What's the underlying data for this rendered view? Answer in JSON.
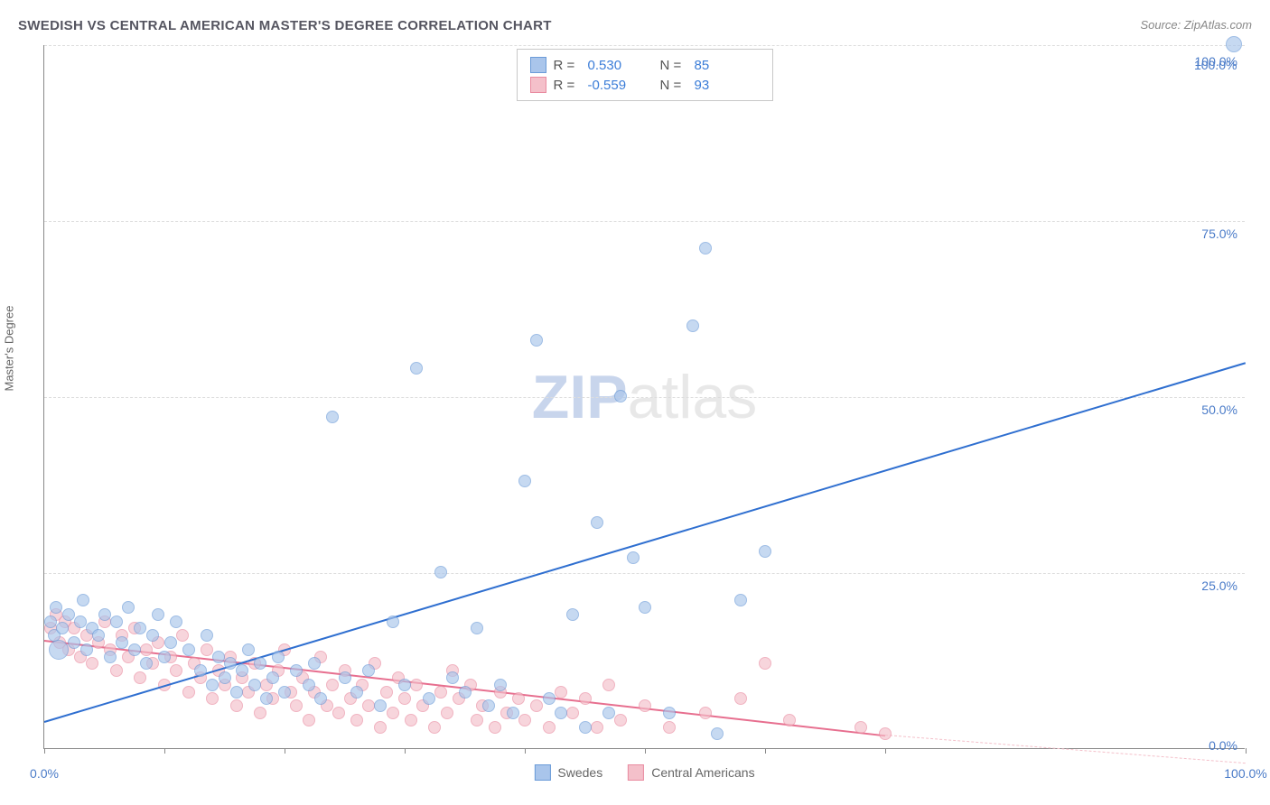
{
  "title": "SWEDISH VS CENTRAL AMERICAN MASTER'S DEGREE CORRELATION CHART",
  "source": "Source: ZipAtlas.com",
  "ylabel": "Master's Degree",
  "watermark_a": "ZIP",
  "watermark_b": "atlas",
  "chart": {
    "type": "scatter",
    "xlim": [
      0,
      100
    ],
    "ylim": [
      0,
      100
    ],
    "ytick_step": 25,
    "yticks": [
      0,
      25,
      50,
      75,
      100
    ],
    "ytick_labels": [
      "0.0%",
      "25.0%",
      "50.0%",
      "75.0%",
      "100.0%"
    ],
    "xticks": [
      0,
      10,
      20,
      30,
      40,
      50,
      60,
      70,
      100
    ],
    "xtick_labels_shown": {
      "0": "0.0%",
      "100": "100.0%"
    },
    "grid_color": "#dddddd",
    "axis_color": "#888888",
    "background_color": "#ffffff"
  },
  "series": {
    "swedes": {
      "label": "Swedes",
      "fill_color": "#a9c5eb",
      "stroke_color": "#6b9bd8",
      "fill_opacity": 0.65,
      "trend_color": "#2f6fd0",
      "trend_width": 2,
      "R": "0.530",
      "N": "85",
      "trend": {
        "x1": 0,
        "y1": 4,
        "x2": 100,
        "y2": 55
      },
      "marker_radius": 7,
      "points": [
        {
          "x": 0.5,
          "y": 18
        },
        {
          "x": 0.8,
          "y": 16
        },
        {
          "x": 1,
          "y": 20
        },
        {
          "x": 1.2,
          "y": 14,
          "r": 11
        },
        {
          "x": 1.5,
          "y": 17
        },
        {
          "x": 2,
          "y": 19
        },
        {
          "x": 2.5,
          "y": 15
        },
        {
          "x": 3,
          "y": 18
        },
        {
          "x": 3.2,
          "y": 21
        },
        {
          "x": 3.5,
          "y": 14
        },
        {
          "x": 4,
          "y": 17
        },
        {
          "x": 4.5,
          "y": 16
        },
        {
          "x": 5,
          "y": 19
        },
        {
          "x": 5.5,
          "y": 13
        },
        {
          "x": 6,
          "y": 18
        },
        {
          "x": 6.5,
          "y": 15
        },
        {
          "x": 7,
          "y": 20
        },
        {
          "x": 7.5,
          "y": 14
        },
        {
          "x": 8,
          "y": 17
        },
        {
          "x": 8.5,
          "y": 12
        },
        {
          "x": 9,
          "y": 16
        },
        {
          "x": 9.5,
          "y": 19
        },
        {
          "x": 10,
          "y": 13
        },
        {
          "x": 10.5,
          "y": 15
        },
        {
          "x": 11,
          "y": 18
        },
        {
          "x": 12,
          "y": 14
        },
        {
          "x": 13,
          "y": 11
        },
        {
          "x": 13.5,
          "y": 16
        },
        {
          "x": 14,
          "y": 9
        },
        {
          "x": 14.5,
          "y": 13
        },
        {
          "x": 15,
          "y": 10
        },
        {
          "x": 15.5,
          "y": 12
        },
        {
          "x": 16,
          "y": 8
        },
        {
          "x": 16.5,
          "y": 11
        },
        {
          "x": 17,
          "y": 14
        },
        {
          "x": 17.5,
          "y": 9
        },
        {
          "x": 18,
          "y": 12
        },
        {
          "x": 18.5,
          "y": 7
        },
        {
          "x": 19,
          "y": 10
        },
        {
          "x": 19.5,
          "y": 13
        },
        {
          "x": 20,
          "y": 8
        },
        {
          "x": 21,
          "y": 11
        },
        {
          "x": 22,
          "y": 9
        },
        {
          "x": 22.5,
          "y": 12
        },
        {
          "x": 23,
          "y": 7
        },
        {
          "x": 24,
          "y": 47
        },
        {
          "x": 25,
          "y": 10
        },
        {
          "x": 26,
          "y": 8
        },
        {
          "x": 27,
          "y": 11
        },
        {
          "x": 28,
          "y": 6
        },
        {
          "x": 29,
          "y": 18
        },
        {
          "x": 30,
          "y": 9
        },
        {
          "x": 31,
          "y": 54
        },
        {
          "x": 32,
          "y": 7
        },
        {
          "x": 33,
          "y": 25
        },
        {
          "x": 34,
          "y": 10
        },
        {
          "x": 35,
          "y": 8
        },
        {
          "x": 36,
          "y": 17
        },
        {
          "x": 37,
          "y": 6
        },
        {
          "x": 38,
          "y": 9
        },
        {
          "x": 39,
          "y": 5
        },
        {
          "x": 40,
          "y": 38
        },
        {
          "x": 41,
          "y": 58
        },
        {
          "x": 42,
          "y": 7
        },
        {
          "x": 43,
          "y": 5
        },
        {
          "x": 44,
          "y": 19
        },
        {
          "x": 45,
          "y": 3
        },
        {
          "x": 46,
          "y": 32
        },
        {
          "x": 47,
          "y": 5
        },
        {
          "x": 48,
          "y": 50
        },
        {
          "x": 49,
          "y": 27
        },
        {
          "x": 50,
          "y": 20
        },
        {
          "x": 52,
          "y": 5
        },
        {
          "x": 54,
          "y": 60
        },
        {
          "x": 55,
          "y": 71
        },
        {
          "x": 56,
          "y": 2
        },
        {
          "x": 58,
          "y": 21
        },
        {
          "x": 60,
          "y": 28
        },
        {
          "x": 99,
          "y": 100,
          "r": 9
        }
      ],
      "special_label": {
        "x": 99,
        "y": 100,
        "text": "100.0%"
      }
    },
    "central_americans": {
      "label": "Central Americans",
      "fill_color": "#f4c0ca",
      "stroke_color": "#e98ba0",
      "fill_opacity": 0.65,
      "trend_color": "#e76f8f",
      "trend_width": 2,
      "R": "-0.559",
      "N": "93",
      "trend": {
        "x1": 0,
        "y1": 15.5,
        "x2": 70,
        "y2": 2
      },
      "trend_dashed_ext": {
        "x1": 70,
        "y1": 2,
        "x2": 100,
        "y2": -2
      },
      "marker_radius": 7,
      "points": [
        {
          "x": 0.5,
          "y": 17
        },
        {
          "x": 1,
          "y": 19
        },
        {
          "x": 1.3,
          "y": 15
        },
        {
          "x": 1.7,
          "y": 18
        },
        {
          "x": 2,
          "y": 14
        },
        {
          "x": 2.5,
          "y": 17
        },
        {
          "x": 3,
          "y": 13
        },
        {
          "x": 3.5,
          "y": 16
        },
        {
          "x": 4,
          "y": 12
        },
        {
          "x": 4.5,
          "y": 15
        },
        {
          "x": 5,
          "y": 18
        },
        {
          "x": 5.5,
          "y": 14
        },
        {
          "x": 6,
          "y": 11
        },
        {
          "x": 6.5,
          "y": 16
        },
        {
          "x": 7,
          "y": 13
        },
        {
          "x": 7.5,
          "y": 17
        },
        {
          "x": 8,
          "y": 10
        },
        {
          "x": 8.5,
          "y": 14
        },
        {
          "x": 9,
          "y": 12
        },
        {
          "x": 9.5,
          "y": 15
        },
        {
          "x": 10,
          "y": 9
        },
        {
          "x": 10.5,
          "y": 13
        },
        {
          "x": 11,
          "y": 11
        },
        {
          "x": 11.5,
          "y": 16
        },
        {
          "x": 12,
          "y": 8
        },
        {
          "x": 12.5,
          "y": 12
        },
        {
          "x": 13,
          "y": 10
        },
        {
          "x": 13.5,
          "y": 14
        },
        {
          "x": 14,
          "y": 7
        },
        {
          "x": 14.5,
          "y": 11
        },
        {
          "x": 15,
          "y": 9
        },
        {
          "x": 15.5,
          "y": 13
        },
        {
          "x": 16,
          "y": 6
        },
        {
          "x": 16.5,
          "y": 10
        },
        {
          "x": 17,
          "y": 8
        },
        {
          "x": 17.5,
          "y": 12
        },
        {
          "x": 18,
          "y": 5
        },
        {
          "x": 18.5,
          "y": 9
        },
        {
          "x": 19,
          "y": 7
        },
        {
          "x": 19.5,
          "y": 11
        },
        {
          "x": 20,
          "y": 14
        },
        {
          "x": 20.5,
          "y": 8
        },
        {
          "x": 21,
          "y": 6
        },
        {
          "x": 21.5,
          "y": 10
        },
        {
          "x": 22,
          "y": 4
        },
        {
          "x": 22.5,
          "y": 8
        },
        {
          "x": 23,
          "y": 13
        },
        {
          "x": 23.5,
          "y": 6
        },
        {
          "x": 24,
          "y": 9
        },
        {
          "x": 24.5,
          "y": 5
        },
        {
          "x": 25,
          "y": 11
        },
        {
          "x": 25.5,
          "y": 7
        },
        {
          "x": 26,
          "y": 4
        },
        {
          "x": 26.5,
          "y": 9
        },
        {
          "x": 27,
          "y": 6
        },
        {
          "x": 27.5,
          "y": 12
        },
        {
          "x": 28,
          "y": 3
        },
        {
          "x": 28.5,
          "y": 8
        },
        {
          "x": 29,
          "y": 5
        },
        {
          "x": 29.5,
          "y": 10
        },
        {
          "x": 30,
          "y": 7
        },
        {
          "x": 30.5,
          "y": 4
        },
        {
          "x": 31,
          "y": 9
        },
        {
          "x": 31.5,
          "y": 6
        },
        {
          "x": 32.5,
          "y": 3
        },
        {
          "x": 33,
          "y": 8
        },
        {
          "x": 33.5,
          "y": 5
        },
        {
          "x": 34,
          "y": 11
        },
        {
          "x": 34.5,
          "y": 7
        },
        {
          "x": 35.5,
          "y": 9
        },
        {
          "x": 36,
          "y": 4
        },
        {
          "x": 36.5,
          "y": 6
        },
        {
          "x": 37.5,
          "y": 3
        },
        {
          "x": 38,
          "y": 8
        },
        {
          "x": 38.5,
          "y": 5
        },
        {
          "x": 39.5,
          "y": 7
        },
        {
          "x": 40,
          "y": 4
        },
        {
          "x": 41,
          "y": 6
        },
        {
          "x": 42,
          "y": 3
        },
        {
          "x": 43,
          "y": 8
        },
        {
          "x": 44,
          "y": 5
        },
        {
          "x": 45,
          "y": 7
        },
        {
          "x": 46,
          "y": 3
        },
        {
          "x": 47,
          "y": 9
        },
        {
          "x": 48,
          "y": 4
        },
        {
          "x": 50,
          "y": 6
        },
        {
          "x": 52,
          "y": 3
        },
        {
          "x": 55,
          "y": 5
        },
        {
          "x": 58,
          "y": 7
        },
        {
          "x": 60,
          "y": 12
        },
        {
          "x": 62,
          "y": 4
        },
        {
          "x": 68,
          "y": 3
        },
        {
          "x": 70,
          "y": 2
        }
      ]
    }
  },
  "legend_top": {
    "rows": [
      {
        "sw_fill": "#a9c5eb",
        "sw_stroke": "#6b9bd8",
        "r_label": "R =",
        "r_val": "0.530",
        "n_label": "N =",
        "n_val": "85"
      },
      {
        "sw_fill": "#f4c0ca",
        "sw_stroke": "#e98ba0",
        "r_label": "R =",
        "r_val": "-0.559",
        "n_label": "N =",
        "n_val": "93"
      }
    ]
  },
  "legend_bottom": {
    "items": [
      {
        "sw_fill": "#a9c5eb",
        "sw_stroke": "#6b9bd8",
        "label": "Swedes"
      },
      {
        "sw_fill": "#f4c0ca",
        "sw_stroke": "#e98ba0",
        "label": "Central Americans"
      }
    ]
  }
}
